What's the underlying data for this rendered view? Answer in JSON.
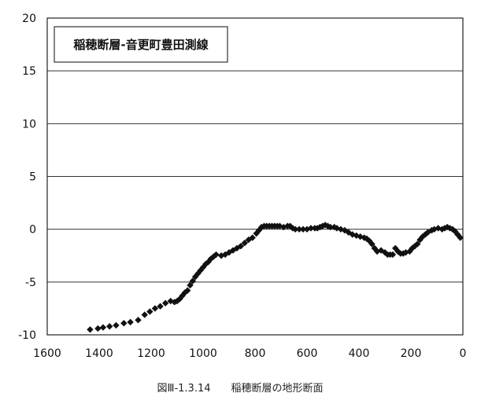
{
  "chart_data": {
    "type": "scatter",
    "title": "稲穂断層-音更町豊田測線",
    "caption": "図Ⅲ-1.3.14　　稲穂断層の地形断面",
    "xlim": [
      1600,
      0
    ],
    "ylim": [
      -10,
      20
    ],
    "x_ticks": [
      1600,
      1400,
      1200,
      1000,
      800,
      600,
      400,
      200,
      0
    ],
    "y_ticks": [
      20,
      15,
      10,
      5,
      0,
      -5,
      -10
    ],
    "gridlines": "horizontal",
    "marker": "diamond",
    "marker_color": "#111111",
    "legend": "none",
    "points": [
      [
        1435,
        -9.5
      ],
      [
        1405,
        -9.4
      ],
      [
        1385,
        -9.3
      ],
      [
        1360,
        -9.2
      ],
      [
        1335,
        -9.1
      ],
      [
        1305,
        -8.9
      ],
      [
        1280,
        -8.8
      ],
      [
        1250,
        -8.6
      ],
      [
        1225,
        -8.1
      ],
      [
        1205,
        -7.8
      ],
      [
        1185,
        -7.5
      ],
      [
        1165,
        -7.3
      ],
      [
        1145,
        -7.0
      ],
      [
        1125,
        -6.8
      ],
      [
        1110,
        -6.9
      ],
      [
        1100,
        -6.8
      ],
      [
        1090,
        -6.6
      ],
      [
        1080,
        -6.3
      ],
      [
        1070,
        -6.0
      ],
      [
        1060,
        -5.8
      ],
      [
        1050,
        -5.3
      ],
      [
        1040,
        -4.9
      ],
      [
        1030,
        -4.5
      ],
      [
        1020,
        -4.2
      ],
      [
        1010,
        -3.9
      ],
      [
        1000,
        -3.6
      ],
      [
        990,
        -3.3
      ],
      [
        980,
        -3.1
      ],
      [
        970,
        -2.8
      ],
      [
        960,
        -2.6
      ],
      [
        950,
        -2.4
      ],
      [
        930,
        -2.5
      ],
      [
        915,
        -2.4
      ],
      [
        900,
        -2.2
      ],
      [
        885,
        -2.0
      ],
      [
        870,
        -1.8
      ],
      [
        855,
        -1.6
      ],
      [
        840,
        -1.3
      ],
      [
        825,
        -1.0
      ],
      [
        810,
        -0.8
      ],
      [
        795,
        -0.4
      ],
      [
        785,
        -0.1
      ],
      [
        775,
        0.2
      ],
      [
        765,
        0.3
      ],
      [
        755,
        0.3
      ],
      [
        745,
        0.3
      ],
      [
        735,
        0.3
      ],
      [
        725,
        0.3
      ],
      [
        715,
        0.3
      ],
      [
        705,
        0.3
      ],
      [
        690,
        0.2
      ],
      [
        675,
        0.3
      ],
      [
        665,
        0.3
      ],
      [
        655,
        0.1
      ],
      [
        645,
        0.0
      ],
      [
        630,
        0.0
      ],
      [
        615,
        0.0
      ],
      [
        600,
        0.0
      ],
      [
        585,
        0.1
      ],
      [
        570,
        0.1
      ],
      [
        560,
        0.1
      ],
      [
        550,
        0.2
      ],
      [
        540,
        0.3
      ],
      [
        530,
        0.4
      ],
      [
        520,
        0.3
      ],
      [
        510,
        0.2
      ],
      [
        495,
        0.2
      ],
      [
        485,
        0.1
      ],
      [
        470,
        0.0
      ],
      [
        455,
        -0.1
      ],
      [
        440,
        -0.3
      ],
      [
        425,
        -0.5
      ],
      [
        410,
        -0.6
      ],
      [
        395,
        -0.7
      ],
      [
        380,
        -0.8
      ],
      [
        370,
        -0.9
      ],
      [
        360,
        -1.1
      ],
      [
        350,
        -1.4
      ],
      [
        340,
        -1.8
      ],
      [
        330,
        -2.1
      ],
      [
        315,
        -2.0
      ],
      [
        300,
        -2.2
      ],
      [
        290,
        -2.4
      ],
      [
        280,
        -2.4
      ],
      [
        270,
        -2.4
      ],
      [
        260,
        -1.8
      ],
      [
        250,
        -2.1
      ],
      [
        240,
        -2.3
      ],
      [
        230,
        -2.3
      ],
      [
        220,
        -2.2
      ],
      [
        205,
        -2.1
      ],
      [
        195,
        -1.8
      ],
      [
        185,
        -1.6
      ],
      [
        175,
        -1.4
      ],
      [
        165,
        -1.0
      ],
      [
        155,
        -0.7
      ],
      [
        145,
        -0.5
      ],
      [
        135,
        -0.3
      ],
      [
        120,
        -0.1
      ],
      [
        110,
        0.0
      ],
      [
        95,
        0.1
      ],
      [
        80,
        0.0
      ],
      [
        70,
        0.1
      ],
      [
        60,
        0.2
      ],
      [
        50,
        0.1
      ],
      [
        40,
        0.0
      ],
      [
        30,
        -0.2
      ],
      [
        20,
        -0.5
      ],
      [
        10,
        -0.8
      ]
    ]
  }
}
